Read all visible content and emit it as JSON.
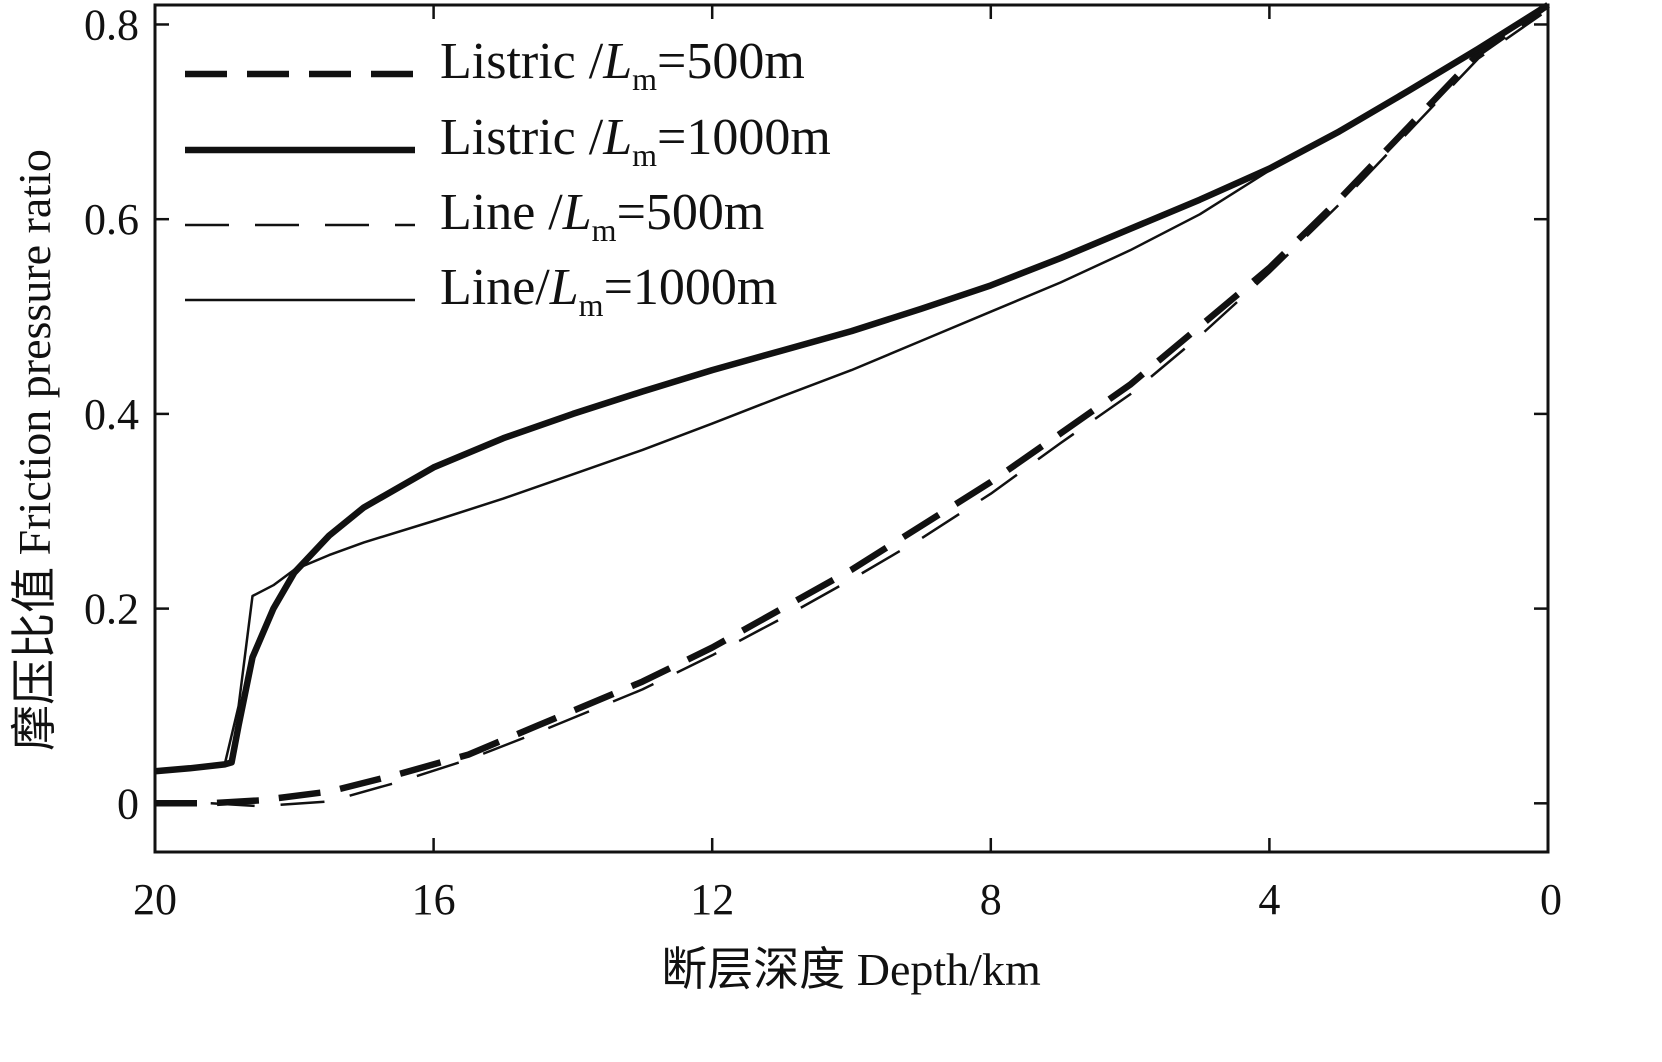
{
  "chart_data": {
    "type": "line",
    "xlabel": "断层深度 Depth/km",
    "ylabel": "摩压比值 Friction pressure ratio",
    "xlim": [
      20,
      0
    ],
    "ylim": [
      -0.05,
      0.82
    ],
    "x_reversed": true,
    "x_ticks": [
      20,
      16,
      12,
      8,
      4,
      0
    ],
    "x_tick_labels": [
      "20",
      "16",
      "12",
      "8",
      "4",
      "0"
    ],
    "y_ticks": [
      0,
      0.2,
      0.4,
      0.6,
      0.8
    ],
    "y_tick_labels": [
      "0",
      "0.2",
      "0.4",
      "0.6",
      "0.8"
    ],
    "grid": false,
    "legend_position": "top-left",
    "series": [
      {
        "name": "Listric /Lm=500m",
        "legend": {
          "prefix": "Listric /",
          "var": "L",
          "sub": "m",
          "suffix": "=500m"
        },
        "style": "thick-dashed",
        "points": [
          [
            20,
            0.0
          ],
          [
            19.2,
            0.0
          ],
          [
            18.5,
            0.003
          ],
          [
            17.5,
            0.012
          ],
          [
            16.5,
            0.03
          ],
          [
            15.5,
            0.05
          ],
          [
            14.5,
            0.08
          ],
          [
            13,
            0.125
          ],
          [
            12,
            0.16
          ],
          [
            11,
            0.2
          ],
          [
            10,
            0.24
          ],
          [
            9,
            0.285
          ],
          [
            8,
            0.33
          ],
          [
            7,
            0.38
          ],
          [
            6,
            0.43
          ],
          [
            5,
            0.49
          ],
          [
            4,
            0.55
          ],
          [
            3,
            0.62
          ],
          [
            2,
            0.695
          ],
          [
            1,
            0.77
          ],
          [
            0,
            0.82
          ]
        ]
      },
      {
        "name": "Listric /Lm=1000m",
        "legend": {
          "prefix": "Listric /",
          "var": "L",
          "sub": "m",
          "suffix": "=1000m"
        },
        "style": "thick-solid",
        "points": [
          [
            20,
            0.033
          ],
          [
            19.5,
            0.036
          ],
          [
            19.0,
            0.04
          ],
          [
            18.9,
            0.042
          ],
          [
            18.8,
            0.08
          ],
          [
            18.6,
            0.15
          ],
          [
            18.3,
            0.2
          ],
          [
            18.0,
            0.237
          ],
          [
            17.5,
            0.275
          ],
          [
            17,
            0.304
          ],
          [
            16,
            0.345
          ],
          [
            15,
            0.375
          ],
          [
            14,
            0.4
          ],
          [
            13,
            0.423
          ],
          [
            12,
            0.445
          ],
          [
            11,
            0.465
          ],
          [
            10,
            0.485
          ],
          [
            9,
            0.508
          ],
          [
            8,
            0.532
          ],
          [
            7,
            0.56
          ],
          [
            6,
            0.59
          ],
          [
            5,
            0.62
          ],
          [
            4,
            0.652
          ],
          [
            3,
            0.69
          ],
          [
            2,
            0.732
          ],
          [
            1,
            0.775
          ],
          [
            0,
            0.82
          ]
        ]
      },
      {
        "name": "Line /Lm=500m",
        "legend": {
          "prefix": "Line /",
          "var": "L",
          "sub": "m",
          "suffix": "=500m"
        },
        "style": "thin-dashed",
        "points": [
          [
            19.2,
            0.0
          ],
          [
            18.5,
            -0.003
          ],
          [
            17.5,
            0.002
          ],
          [
            16.5,
            0.022
          ],
          [
            15.5,
            0.045
          ],
          [
            14.5,
            0.073
          ],
          [
            13,
            0.117
          ],
          [
            12,
            0.152
          ],
          [
            11,
            0.19
          ],
          [
            10,
            0.23
          ],
          [
            9,
            0.272
          ],
          [
            8,
            0.318
          ],
          [
            7,
            0.37
          ],
          [
            6,
            0.42
          ],
          [
            5,
            0.48
          ],
          [
            4,
            0.545
          ],
          [
            3,
            0.615
          ],
          [
            2,
            0.69
          ],
          [
            1,
            0.765
          ],
          [
            0,
            0.815
          ]
        ]
      },
      {
        "name": "Line/Lm=1000m",
        "legend": {
          "prefix": "Line/",
          "var": "L",
          "sub": "m",
          "suffix": "=1000m"
        },
        "style": "thin-solid",
        "points": [
          [
            20,
            0.033
          ],
          [
            19.0,
            0.04
          ],
          [
            18.8,
            0.1
          ],
          [
            18.6,
            0.213
          ],
          [
            18.3,
            0.224
          ],
          [
            18.0,
            0.24
          ],
          [
            17.5,
            0.255
          ],
          [
            17,
            0.268
          ],
          [
            16,
            0.29
          ],
          [
            15,
            0.313
          ],
          [
            14,
            0.338
          ],
          [
            13,
            0.363
          ],
          [
            12,
            0.39
          ],
          [
            11,
            0.418
          ],
          [
            10,
            0.445
          ],
          [
            9,
            0.475
          ],
          [
            8,
            0.505
          ],
          [
            7,
            0.535
          ],
          [
            6,
            0.568
          ],
          [
            5,
            0.605
          ],
          [
            4,
            0.65
          ],
          [
            3,
            0.69
          ],
          [
            2,
            0.732
          ],
          [
            1,
            0.775
          ],
          [
            0,
            0.82
          ]
        ]
      }
    ]
  }
}
